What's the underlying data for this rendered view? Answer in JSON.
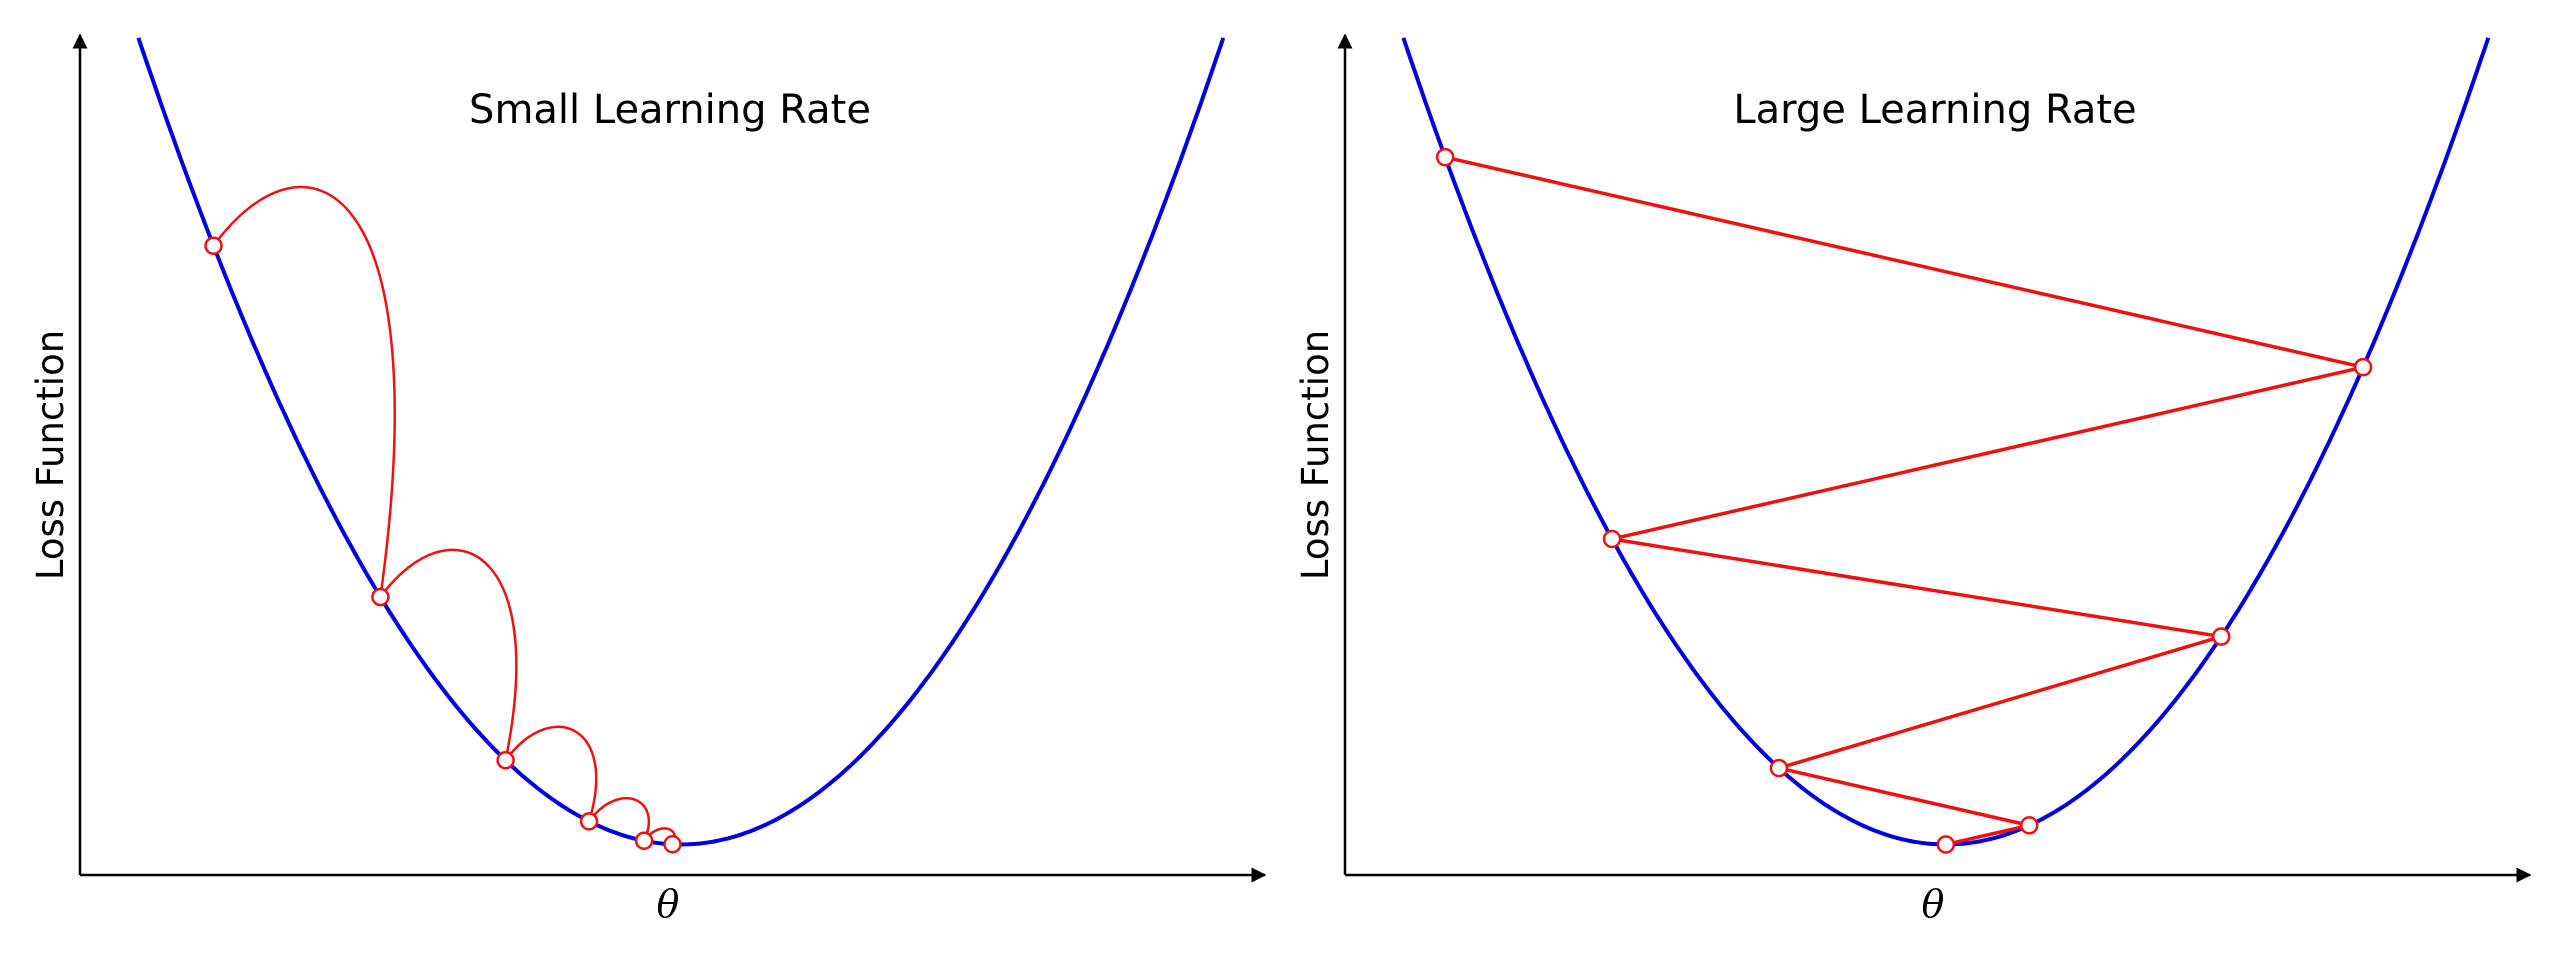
{
  "colors": {
    "curve": "#0000dd",
    "path": "#ee1111",
    "marker_fill": "#ffffff",
    "axis": "#000000"
  },
  "chart_data": [
    {
      "type": "line",
      "title": "Small Learning Rate",
      "xlabel": "θ",
      "ylabel": "Loss Function",
      "xlim": [
        -3.6,
        3.5
      ],
      "ylim": [
        0,
        11
      ],
      "curve": "parabola",
      "steps_x": [
        -2.8,
        -1.8,
        -1.05,
        -0.55,
        -0.22,
        -0.05
      ],
      "step_style": "arc"
    },
    {
      "type": "line",
      "title": "Large Learning Rate",
      "xlabel": "θ",
      "ylabel": "Loss Function",
      "xlim": [
        -3.6,
        3.5
      ],
      "ylim": [
        0,
        11
      ],
      "curve": "parabola",
      "steps_x": [
        -3.0,
        2.5,
        -2.0,
        1.65,
        -1.0,
        0.5,
        0.0
      ],
      "step_style": "line"
    }
  ]
}
